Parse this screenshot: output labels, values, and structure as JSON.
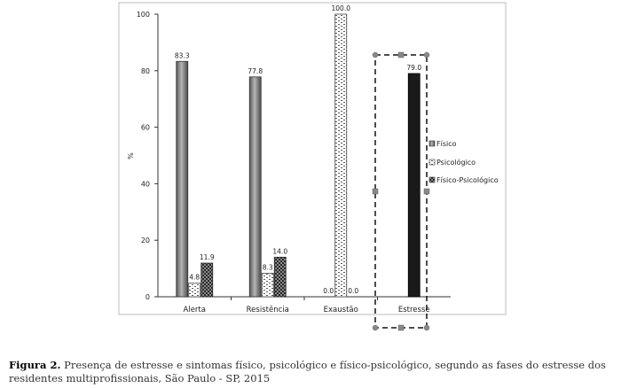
{
  "chart_data": {
    "type": "bar",
    "categories": [
      "Alerta",
      "Resistência",
      "Exaustão",
      "Estresse"
    ],
    "series": [
      {
        "name": "Físico",
        "values": [
          83.3,
          77.8,
          0.0,
          null
        ],
        "labels": [
          "83.3",
          "77.8",
          "0.0",
          ""
        ]
      },
      {
        "name": "Psicológico",
        "values": [
          4.8,
          8.3,
          100.0,
          null
        ],
        "labels": [
          "4.8",
          "8.3",
          "100.0",
          ""
        ]
      },
      {
        "name": "Físico-Psicológico",
        "values": [
          11.9,
          14.0,
          0.0,
          null
        ],
        "labels": [
          "11.9",
          "14.0",
          "0.0",
          ""
        ]
      }
    ],
    "estresse": {
      "value": 79.0,
      "label": "79.0"
    },
    "ylabel": "%",
    "ylim": [
      0,
      100
    ],
    "yticks": [
      "0",
      "20",
      "40",
      "60",
      "80",
      "100"
    ],
    "grid": false,
    "legend": "right",
    "colors": {
      "fisico": "#7f7f7f",
      "psicologico": "#ffffff",
      "fisico_psicologico": "#3a3a3a",
      "estresse": "#1a1a1a"
    }
  },
  "caption": {
    "label": "Figura 2.",
    "text": " Presença de estresse e sintomas físico, psicológico e físico-psicológico, segundo as fases do estresse dos residentes multiprofissionais, São Paulo - SP, 2015"
  }
}
